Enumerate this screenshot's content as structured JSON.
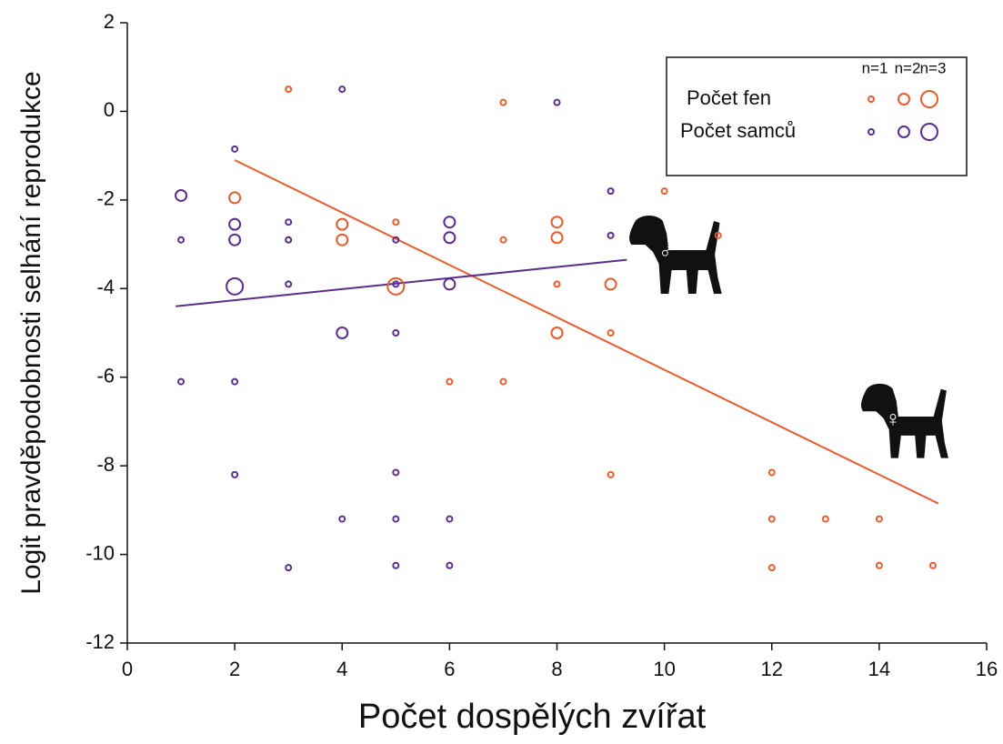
{
  "chart_data": {
    "type": "scatter",
    "x_label": "Počet dospělých zvířat",
    "y_label": "Logit pravděpodobnosti selhání reprodukce",
    "xlim": [
      0,
      16
    ],
    "xticks": [
      0,
      2,
      4,
      6,
      8,
      10,
      12,
      14,
      16
    ],
    "ylim": [
      -12,
      2
    ],
    "yticks": [
      -12,
      -10,
      -8,
      -6,
      -4,
      -2,
      0,
      2
    ],
    "legend_position": "upper right",
    "size_legend": [
      {
        "value": 1,
        "label": "n=1"
      },
      {
        "value": 2,
        "label": "n=2"
      },
      {
        "value": 3,
        "label": "n=3"
      }
    ],
    "series": [
      {
        "name": "Počet fen",
        "color": "#ef5a2b",
        "x": [
          3,
          7,
          2,
          10,
          4,
          5,
          8,
          11,
          3,
          4,
          7,
          8,
          9,
          5,
          8,
          8,
          9,
          6,
          7,
          9,
          12,
          12,
          13,
          14,
          12,
          14,
          15
        ],
        "values": [
          0.5,
          0.2,
          -1.95,
          -1.8,
          -2.55,
          -2.5,
          -2.5,
          -2.8,
          -2.9,
          -2.9,
          -2.9,
          -2.85,
          -3.9,
          -3.95,
          -3.9,
          -5.0,
          -5.0,
          -6.1,
          -6.1,
          -8.2,
          -8.15,
          -9.2,
          -9.2,
          -9.2,
          -10.3,
          -10.25,
          -10.25
        ],
        "sizes": [
          1,
          1,
          2,
          1,
          2,
          1,
          2,
          1,
          1,
          2,
          1,
          2,
          2,
          3,
          1,
          2,
          1,
          1,
          1,
          1,
          1,
          1,
          1,
          1,
          1,
          1,
          1
        ]
      },
      {
        "name": "Počet samců",
        "color": "#5b2d91",
        "x": [
          4,
          8,
          2,
          1,
          9,
          2,
          3,
          6,
          1,
          2,
          3,
          5,
          6,
          9,
          2,
          3,
          5,
          6,
          4,
          5,
          1,
          2,
          2,
          5,
          4,
          5,
          6,
          3,
          5,
          6
        ],
        "values": [
          0.5,
          0.2,
          -0.85,
          -1.9,
          -1.8,
          -2.55,
          -2.5,
          -2.5,
          -2.9,
          -2.9,
          -2.9,
          -2.9,
          -2.85,
          -2.8,
          -3.95,
          -3.9,
          -3.9,
          -3.9,
          -5.0,
          -5.0,
          -6.1,
          -6.1,
          -8.2,
          -8.15,
          -9.2,
          -9.2,
          -9.2,
          -10.3,
          -10.25,
          -10.25
        ],
        "sizes": [
          1,
          1,
          1,
          2,
          1,
          2,
          1,
          2,
          1,
          2,
          1,
          1,
          2,
          1,
          3,
          1,
          1,
          2,
          2,
          1,
          1,
          1,
          1,
          1,
          1,
          1,
          1,
          1,
          1,
          1
        ]
      }
    ],
    "fit_lines": [
      {
        "color": "#ef5a2b",
        "x": [
          2,
          15.1
        ],
        "values": [
          -1.1,
          -8.85
        ]
      },
      {
        "color": "#5b2d91",
        "x": [
          0.9,
          9.3
        ],
        "values": [
          -4.4,
          -3.35
        ]
      }
    ],
    "annotations": [
      "♂",
      "♀"
    ]
  }
}
